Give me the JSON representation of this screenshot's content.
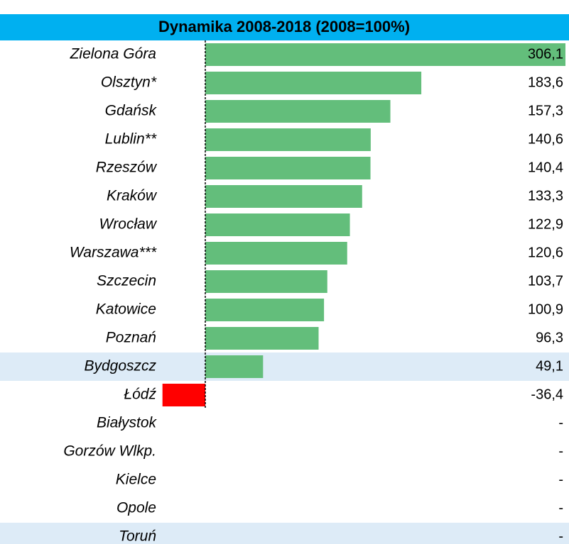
{
  "chart_data": {
    "type": "bar",
    "orientation": "horizontal",
    "title": "Dynamika 2008-2018 (2008=100%)",
    "categories": [
      "Zielona Góra",
      "Olsztyn*",
      "Gdańsk",
      "Lublin**",
      "Rzeszów",
      "Kraków",
      "Wrocław",
      "Warszawa***",
      "Szczecin",
      "Katowice",
      "Poznań",
      "Bydgoszcz",
      "Łódź",
      "Białystok",
      "Gorzów Wlkp.",
      "Kielce",
      "Opole",
      "Toruń"
    ],
    "values": [
      306.1,
      183.6,
      157.3,
      140.6,
      140.4,
      133.3,
      122.9,
      120.6,
      103.7,
      100.9,
      96.3,
      49.1,
      -36.4,
      null,
      null,
      null,
      null,
      null
    ],
    "value_labels": [
      "306,1",
      "183,6",
      "157,3",
      "140,6",
      "140,4",
      "133,3",
      "122,9",
      "120,6",
      "103,7",
      "100,9",
      "96,3",
      "49,1",
      "-36,4",
      "-",
      "-",
      "-",
      "-",
      "-"
    ],
    "color": "#63be7b",
    "negative_color": "#ff0000",
    "header_color": "#00b0f0",
    "highlight_color": "#ddebf7",
    "highlighted_rows": [
      11,
      17
    ],
    "xlim": [
      -36.4,
      306.1
    ]
  }
}
